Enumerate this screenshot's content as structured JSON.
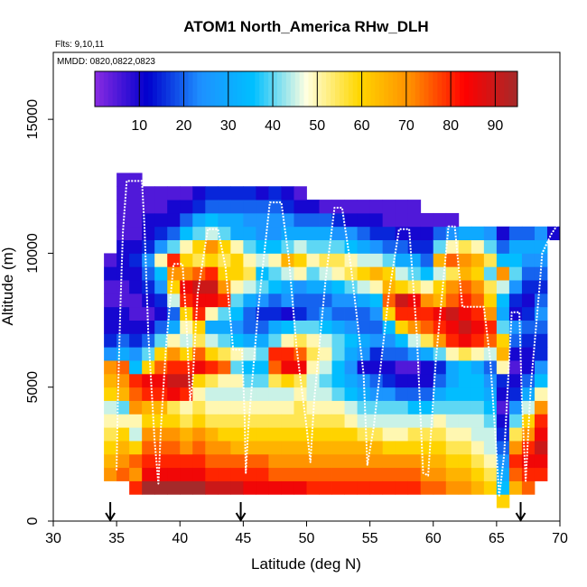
{
  "chart_data": {
    "type": "heatmap",
    "title": "ATOM1 North_America RHw_DLH",
    "flights_label": "Flts: 9,10,11",
    "dates_label": "MMDD: 0820,0822,0823",
    "xlabel": "Latitude (deg N)",
    "ylabel": "Altitude (m)",
    "xlim": [
      30,
      70
    ],
    "ylim": [
      0,
      17500
    ],
    "x_ticks": [
      "30",
      "35",
      "40",
      "45",
      "50",
      "55",
      "60",
      "65",
      "70"
    ],
    "y_ticks": [
      "0",
      "5000",
      "10000",
      "15000"
    ],
    "grid": false,
    "colorbar": {
      "placement": "top-inside",
      "range": [
        0,
        95
      ],
      "ticks": [
        "10",
        "20",
        "30",
        "40",
        "50",
        "60",
        "70",
        "80",
        "90"
      ],
      "colors": [
        "#8a2be2",
        "#0000cd",
        "#1e90ff",
        "#00bfff",
        "#ffffe0",
        "#ffd700",
        "#ff8c00",
        "#ff0000",
        "#a52a2a"
      ]
    },
    "cell_size": {
      "lat_deg": 0.5,
      "alt_m": 500
    },
    "columns": [
      {
        "lat": 34.5,
        "alt_min": 1500,
        "alt_max": 10000,
        "values": [
          70,
          65,
          60,
          55,
          50,
          45,
          60,
          65,
          70,
          25,
          15,
          10,
          10,
          5,
          5,
          10,
          5
        ]
      },
      {
        "lat": 35.5,
        "alt_min": 1500,
        "alt_max": 13000,
        "values": [
          75,
          70,
          65,
          60,
          50,
          40,
          65,
          70,
          75,
          30,
          20,
          10,
          10,
          5,
          5,
          10,
          10,
          10,
          5,
          5,
          5,
          5,
          5
        ]
      },
      {
        "lat": 36.5,
        "alt_min": 1000,
        "alt_max": 13000,
        "values": [
          80,
          70,
          75,
          60,
          45,
          50,
          70,
          75,
          80,
          35,
          25,
          15,
          10,
          5,
          5,
          10,
          10,
          15,
          10,
          5,
          5,
          5,
          5,
          5
        ]
      },
      {
        "lat": 37.5,
        "alt_min": 1000,
        "alt_max": 12500,
        "values": [
          95,
          85,
          80,
          75,
          70,
          60,
          65,
          80,
          85,
          60,
          40,
          20,
          10,
          5,
          10,
          15,
          20,
          25,
          15,
          10,
          10,
          5,
          5
        ]
      },
      {
        "lat": 38.5,
        "alt_min": 1000,
        "alt_max": 12500,
        "values": [
          95,
          85,
          80,
          75,
          70,
          60,
          65,
          80,
          85,
          75,
          60,
          40,
          20,
          10,
          15,
          25,
          35,
          50,
          25,
          15,
          10,
          5,
          5
        ]
      },
      {
        "lat": 39.5,
        "alt_min": 1000,
        "alt_max": 12500,
        "values": [
          95,
          85,
          80,
          75,
          70,
          60,
          55,
          85,
          90,
          80,
          70,
          50,
          30,
          20,
          45,
          60,
          70,
          80,
          40,
          20,
          10,
          10,
          5
        ]
      },
      {
        "lat": 40.5,
        "alt_min": 1000,
        "alt_max": 12500,
        "values": [
          95,
          85,
          80,
          70,
          65,
          55,
          50,
          80,
          90,
          80,
          60,
          45,
          50,
          60,
          80,
          85,
          70,
          60,
          50,
          35,
          20,
          10,
          5
        ]
      },
      {
        "lat": 41.5,
        "alt_min": 1000,
        "alt_max": 12500,
        "values": [
          95,
          85,
          80,
          75,
          70,
          60,
          55,
          50,
          60,
          85,
          75,
          55,
          60,
          80,
          85,
          90,
          75,
          55,
          60,
          40,
          30,
          15,
          10
        ]
      },
      {
        "lat": 42.5,
        "alt_min": 1000,
        "alt_max": 12500,
        "values": [
          90,
          80,
          75,
          70,
          65,
          55,
          50,
          45,
          55,
          80,
          60,
          45,
          30,
          50,
          85,
          90,
          80,
          60,
          70,
          45,
          35,
          20,
          15
        ]
      },
      {
        "lat": 43.5,
        "alt_min": 1000,
        "alt_max": 12500,
        "values": [
          90,
          80,
          75,
          70,
          60,
          55,
          50,
          45,
          50,
          75,
          55,
          40,
          30,
          40,
          80,
          70,
          60,
          55,
          60,
          40,
          30,
          20,
          15
        ]
      },
      {
        "lat": 44.5,
        "alt_min": 1000,
        "alt_max": 12500,
        "values": [
          90,
          80,
          75,
          65,
          60,
          55,
          50,
          45,
          50,
          40,
          50,
          35,
          25,
          35,
          40,
          50,
          60,
          60,
          50,
          30,
          30,
          20,
          15
        ]
      },
      {
        "lat": 45.5,
        "alt_min": 1000,
        "alt_max": 12500,
        "values": [
          85,
          80,
          75,
          65,
          60,
          55,
          50,
          45,
          40,
          35,
          45,
          30,
          20,
          20,
          30,
          45,
          55,
          50,
          40,
          30,
          25,
          20,
          15
        ]
      },
      {
        "lat": 46.5,
        "alt_min": 1000,
        "alt_max": 12500,
        "values": [
          85,
          80,
          75,
          65,
          60,
          55,
          50,
          45,
          40,
          35,
          40,
          30,
          20,
          15,
          25,
          40,
          35,
          45,
          35,
          25,
          25,
          20,
          10
        ]
      },
      {
        "lat": 47.5,
        "alt_min": 1000,
        "alt_max": 12500,
        "values": [
          85,
          75,
          70,
          65,
          60,
          55,
          50,
          45,
          55,
          75,
          80,
          40,
          30,
          15,
          20,
          35,
          40,
          50,
          35,
          25,
          25,
          20,
          15
        ]
      },
      {
        "lat": 48.5,
        "alt_min": 1000,
        "alt_max": 12500,
        "values": [
          85,
          75,
          70,
          65,
          60,
          55,
          50,
          45,
          60,
          85,
          80,
          50,
          35,
          10,
          25,
          30,
          45,
          65,
          40,
          30,
          25,
          15,
          10
        ]
      },
      {
        "lat": 49.5,
        "alt_min": 1000,
        "alt_max": 12500,
        "values": [
          85,
          75,
          70,
          65,
          60,
          55,
          55,
          50,
          55,
          85,
          75,
          55,
          40,
          15,
          20,
          25,
          50,
          60,
          45,
          30,
          20,
          10,
          5
        ]
      },
      {
        "lat": 50.5,
        "alt_min": 1000,
        "alt_max": 12000,
        "values": [
          80,
          75,
          70,
          65,
          60,
          55,
          50,
          45,
          45,
          50,
          55,
          50,
          40,
          20,
          20,
          30,
          40,
          50,
          40,
          30,
          20,
          10
        ]
      },
      {
        "lat": 51.5,
        "alt_min": 1000,
        "alt_max": 12000,
        "values": [
          80,
          75,
          70,
          65,
          60,
          55,
          50,
          45,
          40,
          45,
          50,
          45,
          35,
          25,
          20,
          30,
          45,
          55,
          40,
          30,
          20,
          5
        ]
      },
      {
        "lat": 52.5,
        "alt_min": 1000,
        "alt_max": 12000,
        "values": [
          80,
          75,
          70,
          65,
          60,
          55,
          50,
          40,
          35,
          35,
          40,
          40,
          30,
          20,
          25,
          35,
          50,
          55,
          40,
          25,
          15,
          5
        ]
      },
      {
        "lat": 53.5,
        "alt_min": 1000,
        "alt_max": 12000,
        "values": [
          80,
          75,
          70,
          65,
          60,
          50,
          45,
          35,
          30,
          25,
          30,
          35,
          25,
          20,
          25,
          40,
          55,
          50,
          35,
          25,
          10,
          5
        ]
      },
      {
        "lat": 54.5,
        "alt_min": 1000,
        "alt_max": 12000,
        "values": [
          80,
          75,
          70,
          65,
          55,
          45,
          40,
          30,
          25,
          10,
          25,
          30,
          20,
          20,
          30,
          45,
          60,
          45,
          30,
          20,
          10,
          5
        ]
      },
      {
        "lat": 55.5,
        "alt_min": 1000,
        "alt_max": 12000,
        "values": [
          80,
          75,
          70,
          65,
          55,
          45,
          40,
          25,
          20,
          10,
          15,
          25,
          20,
          25,
          35,
          50,
          65,
          45,
          25,
          15,
          10,
          5
        ]
      },
      {
        "lat": 56.5,
        "alt_min": 1000,
        "alt_max": 12000,
        "values": [
          80,
          75,
          70,
          60,
          50,
          45,
          40,
          25,
          15,
          10,
          20,
          25,
          35,
          60,
          75,
          65,
          60,
          40,
          20,
          15,
          5,
          5
        ]
      },
      {
        "lat": 57.5,
        "alt_min": 1000,
        "alt_max": 12000,
        "values": [
          80,
          75,
          70,
          60,
          50,
          45,
          40,
          20,
          10,
          5,
          20,
          35,
          60,
          80,
          90,
          60,
          45,
          30,
          20,
          10,
          5,
          5
        ]
      },
      {
        "lat": 58.5,
        "alt_min": 1000,
        "alt_max": 12000,
        "values": [
          80,
          75,
          70,
          60,
          55,
          45,
          35,
          20,
          10,
          5,
          25,
          45,
          70,
          80,
          85,
          55,
          40,
          30,
          15,
          10,
          5,
          5
        ]
      },
      {
        "lat": 59.5,
        "alt_min": 1000,
        "alt_max": 11500,
        "values": [
          75,
          70,
          65,
          60,
          55,
          45,
          35,
          20,
          10,
          10,
          30,
          55,
          75,
          80,
          70,
          50,
          35,
          20,
          15,
          10,
          5
        ]
      },
      {
        "lat": 60.5,
        "alt_min": 1000,
        "alt_max": 11500,
        "values": [
          75,
          70,
          65,
          60,
          55,
          50,
          40,
          30,
          20,
          15,
          40,
          70,
          80,
          85,
          65,
          60,
          45,
          65,
          40,
          20,
          5
        ]
      },
      {
        "lat": 61.5,
        "alt_min": 1000,
        "alt_max": 11500,
        "values": [
          70,
          65,
          60,
          55,
          50,
          45,
          40,
          35,
          30,
          30,
          50,
          80,
          85,
          90,
          75,
          70,
          55,
          75,
          50,
          25,
          5
        ]
      },
      {
        "lat": 62.5,
        "alt_min": 1000,
        "alt_max": 11000,
        "values": [
          70,
          65,
          60,
          55,
          50,
          45,
          40,
          35,
          35,
          35,
          55,
          85,
          90,
          85,
          80,
          75,
          65,
          70,
          55,
          30
        ]
      },
      {
        "lat": 63.5,
        "alt_min": 1000,
        "alt_max": 11000,
        "values": [
          65,
          60,
          55,
          50,
          45,
          45,
          40,
          35,
          35,
          30,
          50,
          80,
          85,
          80,
          75,
          70,
          60,
          65,
          50,
          30
        ]
      },
      {
        "lat": 64.5,
        "alt_min": 1000,
        "alt_max": 11000,
        "values": [
          60,
          55,
          50,
          45,
          45,
          40,
          35,
          30,
          25,
          20,
          45,
          75,
          80,
          70,
          60,
          55,
          40,
          55,
          40,
          25
        ]
      },
      {
        "lat": 65.5,
        "alt_min": 500,
        "alt_max": 11000,
        "values": [
          60,
          35,
          30,
          25,
          20,
          15,
          10,
          5,
          10,
          15,
          50,
          65,
          60,
          40,
          30,
          35,
          45,
          70,
          35,
          20,
          10
        ]
      },
      {
        "lat": 66.5,
        "alt_min": 1000,
        "alt_max": 11000,
        "values": [
          65,
          75,
          80,
          70,
          55,
          40,
          25,
          15,
          10,
          5,
          10,
          20,
          25,
          10,
          15,
          25,
          40,
          35,
          30,
          20
        ]
      },
      {
        "lat": 67.5,
        "alt_min": 1000,
        "alt_max": 11000,
        "values": [
          75,
          80,
          85,
          80,
          70,
          60,
          45,
          30,
          20,
          10,
          10,
          15,
          20,
          15,
          10,
          15,
          20,
          25,
          30,
          20
        ]
      },
      {
        "lat": 68.5,
        "alt_min": 1500,
        "alt_max": 11000,
        "values": [
          80,
          85,
          90,
          85,
          80,
          70,
          50,
          35,
          25,
          15,
          15,
          20,
          25,
          20,
          15,
          20,
          25,
          30,
          25
        ]
      },
      {
        "lat": 69.5,
        "alt_min": 10500,
        "alt_max": 11000,
        "values": [
          10
        ]
      }
    ],
    "flight_track": [
      {
        "lat": 35.0,
        "alt": 1900
      },
      {
        "lat": 35.1,
        "alt": 4500
      },
      {
        "lat": 35.3,
        "alt": 8000
      },
      {
        "lat": 35.5,
        "alt": 10800
      },
      {
        "lat": 35.8,
        "alt": 12700
      },
      {
        "lat": 37.0,
        "alt": 12700
      },
      {
        "lat": 37.2,
        "alt": 11000
      },
      {
        "lat": 37.5,
        "alt": 7000
      },
      {
        "lat": 38.0,
        "alt": 3000
      },
      {
        "lat": 38.3,
        "alt": 1400
      },
      {
        "lat": 38.5,
        "alt": 3500
      },
      {
        "lat": 38.9,
        "alt": 6500
      },
      {
        "lat": 39.5,
        "alt": 9600
      },
      {
        "lat": 40.2,
        "alt": 9600
      },
      {
        "lat": 40.5,
        "alt": 7500
      },
      {
        "lat": 40.8,
        "alt": 4500
      },
      {
        "lat": 41.0,
        "alt": 5200
      },
      {
        "lat": 41.4,
        "alt": 8500
      },
      {
        "lat": 42.2,
        "alt": 10900
      },
      {
        "lat": 43.0,
        "alt": 10900
      },
      {
        "lat": 43.6,
        "alt": 9500
      },
      {
        "lat": 44.2,
        "alt": 6400
      },
      {
        "lat": 44.9,
        "alt": 6400
      },
      {
        "lat": 45.1,
        "alt": 4000
      },
      {
        "lat": 45.2,
        "alt": 1800
      },
      {
        "lat": 45.4,
        "alt": 3500
      },
      {
        "lat": 46.2,
        "alt": 8000
      },
      {
        "lat": 47.1,
        "alt": 11900
      },
      {
        "lat": 48.0,
        "alt": 11900
      },
      {
        "lat": 48.6,
        "alt": 9800
      },
      {
        "lat": 49.2,
        "alt": 6500
      },
      {
        "lat": 50.0,
        "alt": 3500
      },
      {
        "lat": 50.3,
        "alt": 2200
      },
      {
        "lat": 50.6,
        "alt": 4500
      },
      {
        "lat": 51.5,
        "alt": 9000
      },
      {
        "lat": 52.2,
        "alt": 11700
      },
      {
        "lat": 52.8,
        "alt": 11700
      },
      {
        "lat": 53.5,
        "alt": 9500
      },
      {
        "lat": 54.5,
        "alt": 5500
      },
      {
        "lat": 54.8,
        "alt": 2100
      },
      {
        "lat": 55.3,
        "alt": 3500
      },
      {
        "lat": 56.5,
        "alt": 8500
      },
      {
        "lat": 57.3,
        "alt": 10900
      },
      {
        "lat": 58.1,
        "alt": 10900
      },
      {
        "lat": 58.7,
        "alt": 7000
      },
      {
        "lat": 59.2,
        "alt": 1800
      },
      {
        "lat": 59.6,
        "alt": 1700
      },
      {
        "lat": 60.2,
        "alt": 6000
      },
      {
        "lat": 61.2,
        "alt": 11000
      },
      {
        "lat": 61.7,
        "alt": 11000
      },
      {
        "lat": 62.3,
        "alt": 8000
      },
      {
        "lat": 64.0,
        "alt": 8000
      },
      {
        "lat": 64.5,
        "alt": 6000
      },
      {
        "lat": 65.0,
        "alt": 2500
      },
      {
        "lat": 65.2,
        "alt": 900
      },
      {
        "lat": 65.6,
        "alt": 2500
      },
      {
        "lat": 66.2,
        "alt": 7800
      },
      {
        "lat": 66.8,
        "alt": 7800
      },
      {
        "lat": 67.0,
        "alt": 4500
      },
      {
        "lat": 67.3,
        "alt": 1500
      },
      {
        "lat": 67.7,
        "alt": 5000
      },
      {
        "lat": 68.4,
        "alt": 8800
      },
      {
        "lat": 68.6,
        "alt": 10000
      },
      {
        "lat": 69.3,
        "alt": 10700
      },
      {
        "lat": 70.0,
        "alt": 11200
      }
    ],
    "markers": [
      {
        "lat": 34.5
      },
      {
        "lat": 44.8
      },
      {
        "lat": 66.9
      }
    ]
  }
}
